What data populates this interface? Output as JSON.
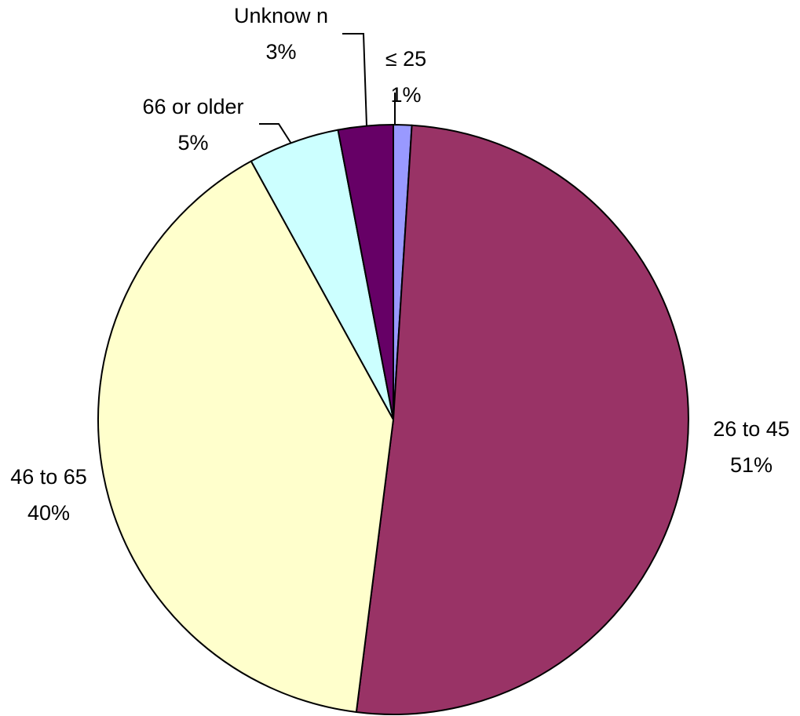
{
  "chart_data": {
    "type": "pie",
    "title": "",
    "start_angle_deg": 0,
    "direction": "clockwise",
    "slices": [
      {
        "name": "≤ 25",
        "value": 1,
        "value_label": "1%",
        "color": "#9999FF"
      },
      {
        "name": "26 to 45",
        "value": 51,
        "value_label": "51%",
        "color": "#993366"
      },
      {
        "name": "46 to 65",
        "value": 40,
        "value_label": "40%",
        "color": "#FFFFCC"
      },
      {
        "name": "66 or older",
        "value": 5,
        "value_label": "5%",
        "color": "#CCFFFF"
      },
      {
        "name": "Unknow n",
        "value": 3,
        "value_label": "3%",
        "color": "#660066"
      }
    ]
  }
}
